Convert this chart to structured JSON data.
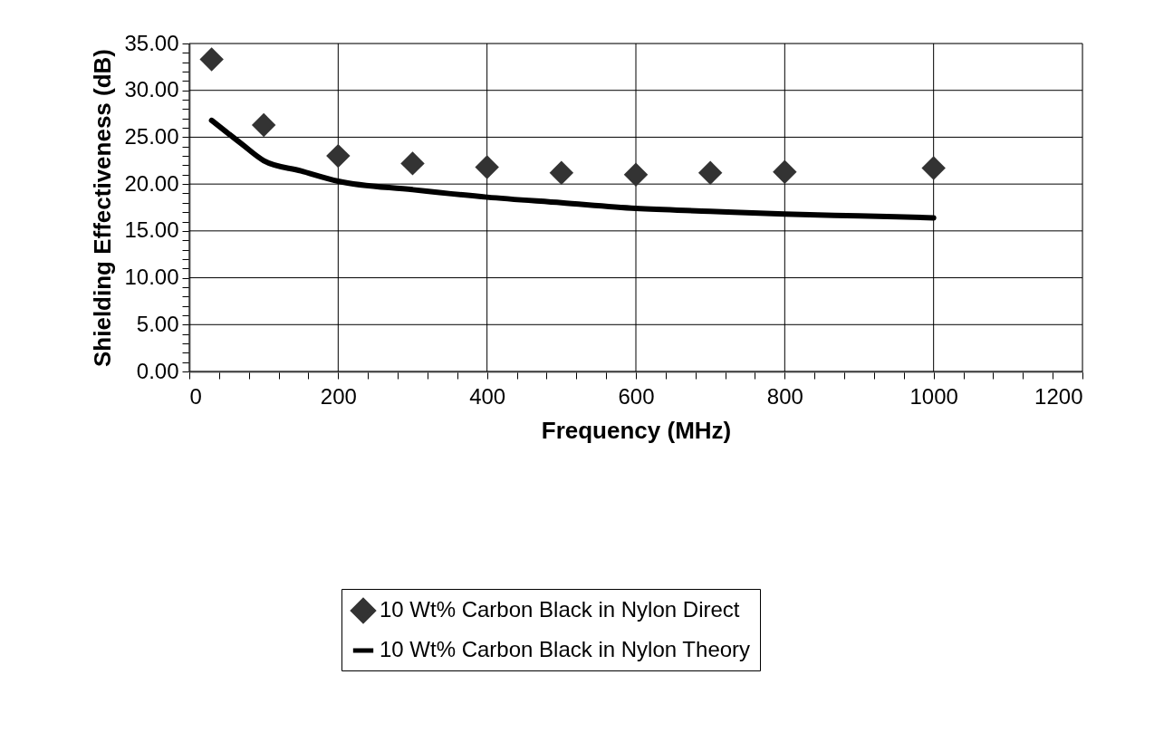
{
  "chart_data": {
    "type": "scatter",
    "xlabel": "Frequency (MHz)",
    "ylabel": "Shielding Effectiveness (dB)",
    "xlim": [
      0,
      1200
    ],
    "ylim": [
      0,
      35
    ],
    "xticks": [
      0,
      {
        "value": 40,
        "label": null
      },
      {
        "value": 80,
        "label": null
      },
      {
        "value": 120,
        "label": null
      },
      {
        "value": 160,
        "label": null
      },
      200,
      {
        "value": 240,
        "label": null
      },
      {
        "value": 280,
        "label": null
      },
      {
        "value": 320,
        "label": null
      },
      {
        "value": 360,
        "label": null
      },
      400,
      {
        "value": 440,
        "label": null
      },
      {
        "value": 480,
        "label": null
      },
      {
        "value": 520,
        "label": null
      },
      {
        "value": 560,
        "label": null
      },
      600,
      {
        "value": 640,
        "label": null
      },
      {
        "value": 680,
        "label": null
      },
      {
        "value": 720,
        "label": null
      },
      {
        "value": 760,
        "label": null
      },
      800,
      {
        "value": 840,
        "label": null
      },
      {
        "value": 880,
        "label": null
      },
      {
        "value": 920,
        "label": null
      },
      {
        "value": 960,
        "label": null
      },
      1000,
      {
        "value": 1040,
        "label": null
      },
      {
        "value": 1080,
        "label": null
      },
      {
        "value": 1120,
        "label": null
      },
      {
        "value": 1160,
        "label": null
      },
      1200
    ],
    "yticks": [
      {
        "value": 0,
        "label": "0.00"
      },
      {
        "value": 1,
        "label": null
      },
      {
        "value": 2,
        "label": null
      },
      {
        "value": 3,
        "label": null
      },
      {
        "value": 4,
        "label": null
      },
      {
        "value": 5,
        "label": "5.00"
      },
      {
        "value": 6,
        "label": null
      },
      {
        "value": 7,
        "label": null
      },
      {
        "value": 8,
        "label": null
      },
      {
        "value": 9,
        "label": null
      },
      {
        "value": 10,
        "label": "10.00"
      },
      {
        "value": 11,
        "label": null
      },
      {
        "value": 12,
        "label": null
      },
      {
        "value": 13,
        "label": null
      },
      {
        "value": 14,
        "label": null
      },
      {
        "value": 15,
        "label": "15.00"
      },
      {
        "value": 16,
        "label": null
      },
      {
        "value": 17,
        "label": null
      },
      {
        "value": 18,
        "label": null
      },
      {
        "value": 19,
        "label": null
      },
      {
        "value": 20,
        "label": "20.00"
      },
      {
        "value": 21,
        "label": null
      },
      {
        "value": 22,
        "label": null
      },
      {
        "value": 23,
        "label": null
      },
      {
        "value": 24,
        "label": null
      },
      {
        "value": 25,
        "label": "25.00"
      },
      {
        "value": 26,
        "label": null
      },
      {
        "value": 27,
        "label": null
      },
      {
        "value": 28,
        "label": null
      },
      {
        "value": 29,
        "label": null
      },
      {
        "value": 30,
        "label": "30.00"
      },
      {
        "value": 31,
        "label": null
      },
      {
        "value": 32,
        "label": null
      },
      {
        "value": 33,
        "label": null
      },
      {
        "value": 34,
        "label": null
      },
      {
        "value": 35,
        "label": "35.00"
      }
    ],
    "grid": true,
    "legend": "bottom",
    "series": [
      {
        "name": "10 Wt% Carbon Black in Nylon Direct",
        "type": "scatter",
        "marker": "diamond",
        "color": "#333333",
        "x": [
          30,
          100,
          200,
          300,
          400,
          500,
          600,
          700,
          800,
          1000
        ],
        "values": [
          33.3,
          26.3,
          23.0,
          22.2,
          21.8,
          21.2,
          21.0,
          21.2,
          21.3,
          21.7
        ]
      },
      {
        "name": "10 Wt% Carbon Black in Nylon Theory",
        "type": "line",
        "marker": "none",
        "line_style": "solid",
        "color": "#000000",
        "x": [
          30,
          70,
          100,
          150,
          200,
          300,
          400,
          500,
          600,
          700,
          800,
          900,
          1000
        ],
        "values": [
          26.8,
          24.3,
          22.5,
          21.4,
          20.3,
          19.4,
          18.6,
          18.0,
          17.4,
          17.1,
          16.8,
          16.6,
          16.4
        ]
      }
    ]
  }
}
